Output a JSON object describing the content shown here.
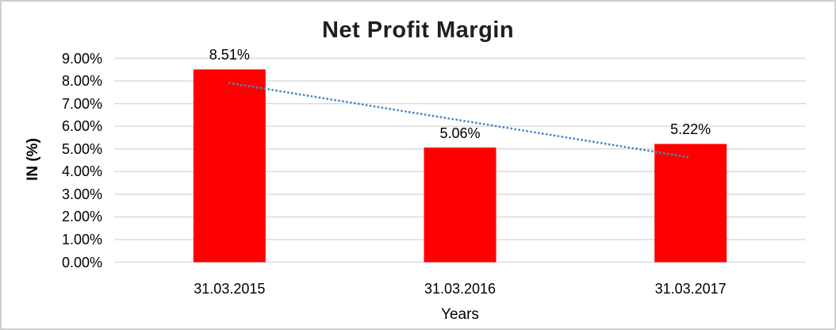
{
  "chart_data": {
    "type": "bar",
    "title": "Net Profit Margin",
    "categories": [
      "31.03.2015",
      "31.03.2016",
      "31.03.2017"
    ],
    "values": [
      8.51,
      5.06,
      5.22
    ],
    "data_labels": [
      "8.51%",
      "5.06%",
      "5.22%"
    ],
    "xlabel": "Years",
    "ylabel": "IN (%)",
    "ylim": [
      0,
      9
    ],
    "ytick_step": 1,
    "ytick_labels": [
      "0.00%",
      "1.00%",
      "2.00%",
      "3.00%",
      "4.00%",
      "5.00%",
      "6.00%",
      "7.00%",
      "8.00%",
      "9.00%"
    ],
    "grid": true,
    "legend": "none",
    "trendline": {
      "type": "linear",
      "line_style": "dotted",
      "start_value": 7.91,
      "end_value": 4.62
    },
    "colors": {
      "bar": "#ff0000",
      "trendline": "#4a86c8",
      "gridline": "#d9d9d9",
      "frame_border": "#cfcfcf",
      "title_text": "#1f1f1f",
      "axis_text": "#000000"
    }
  }
}
